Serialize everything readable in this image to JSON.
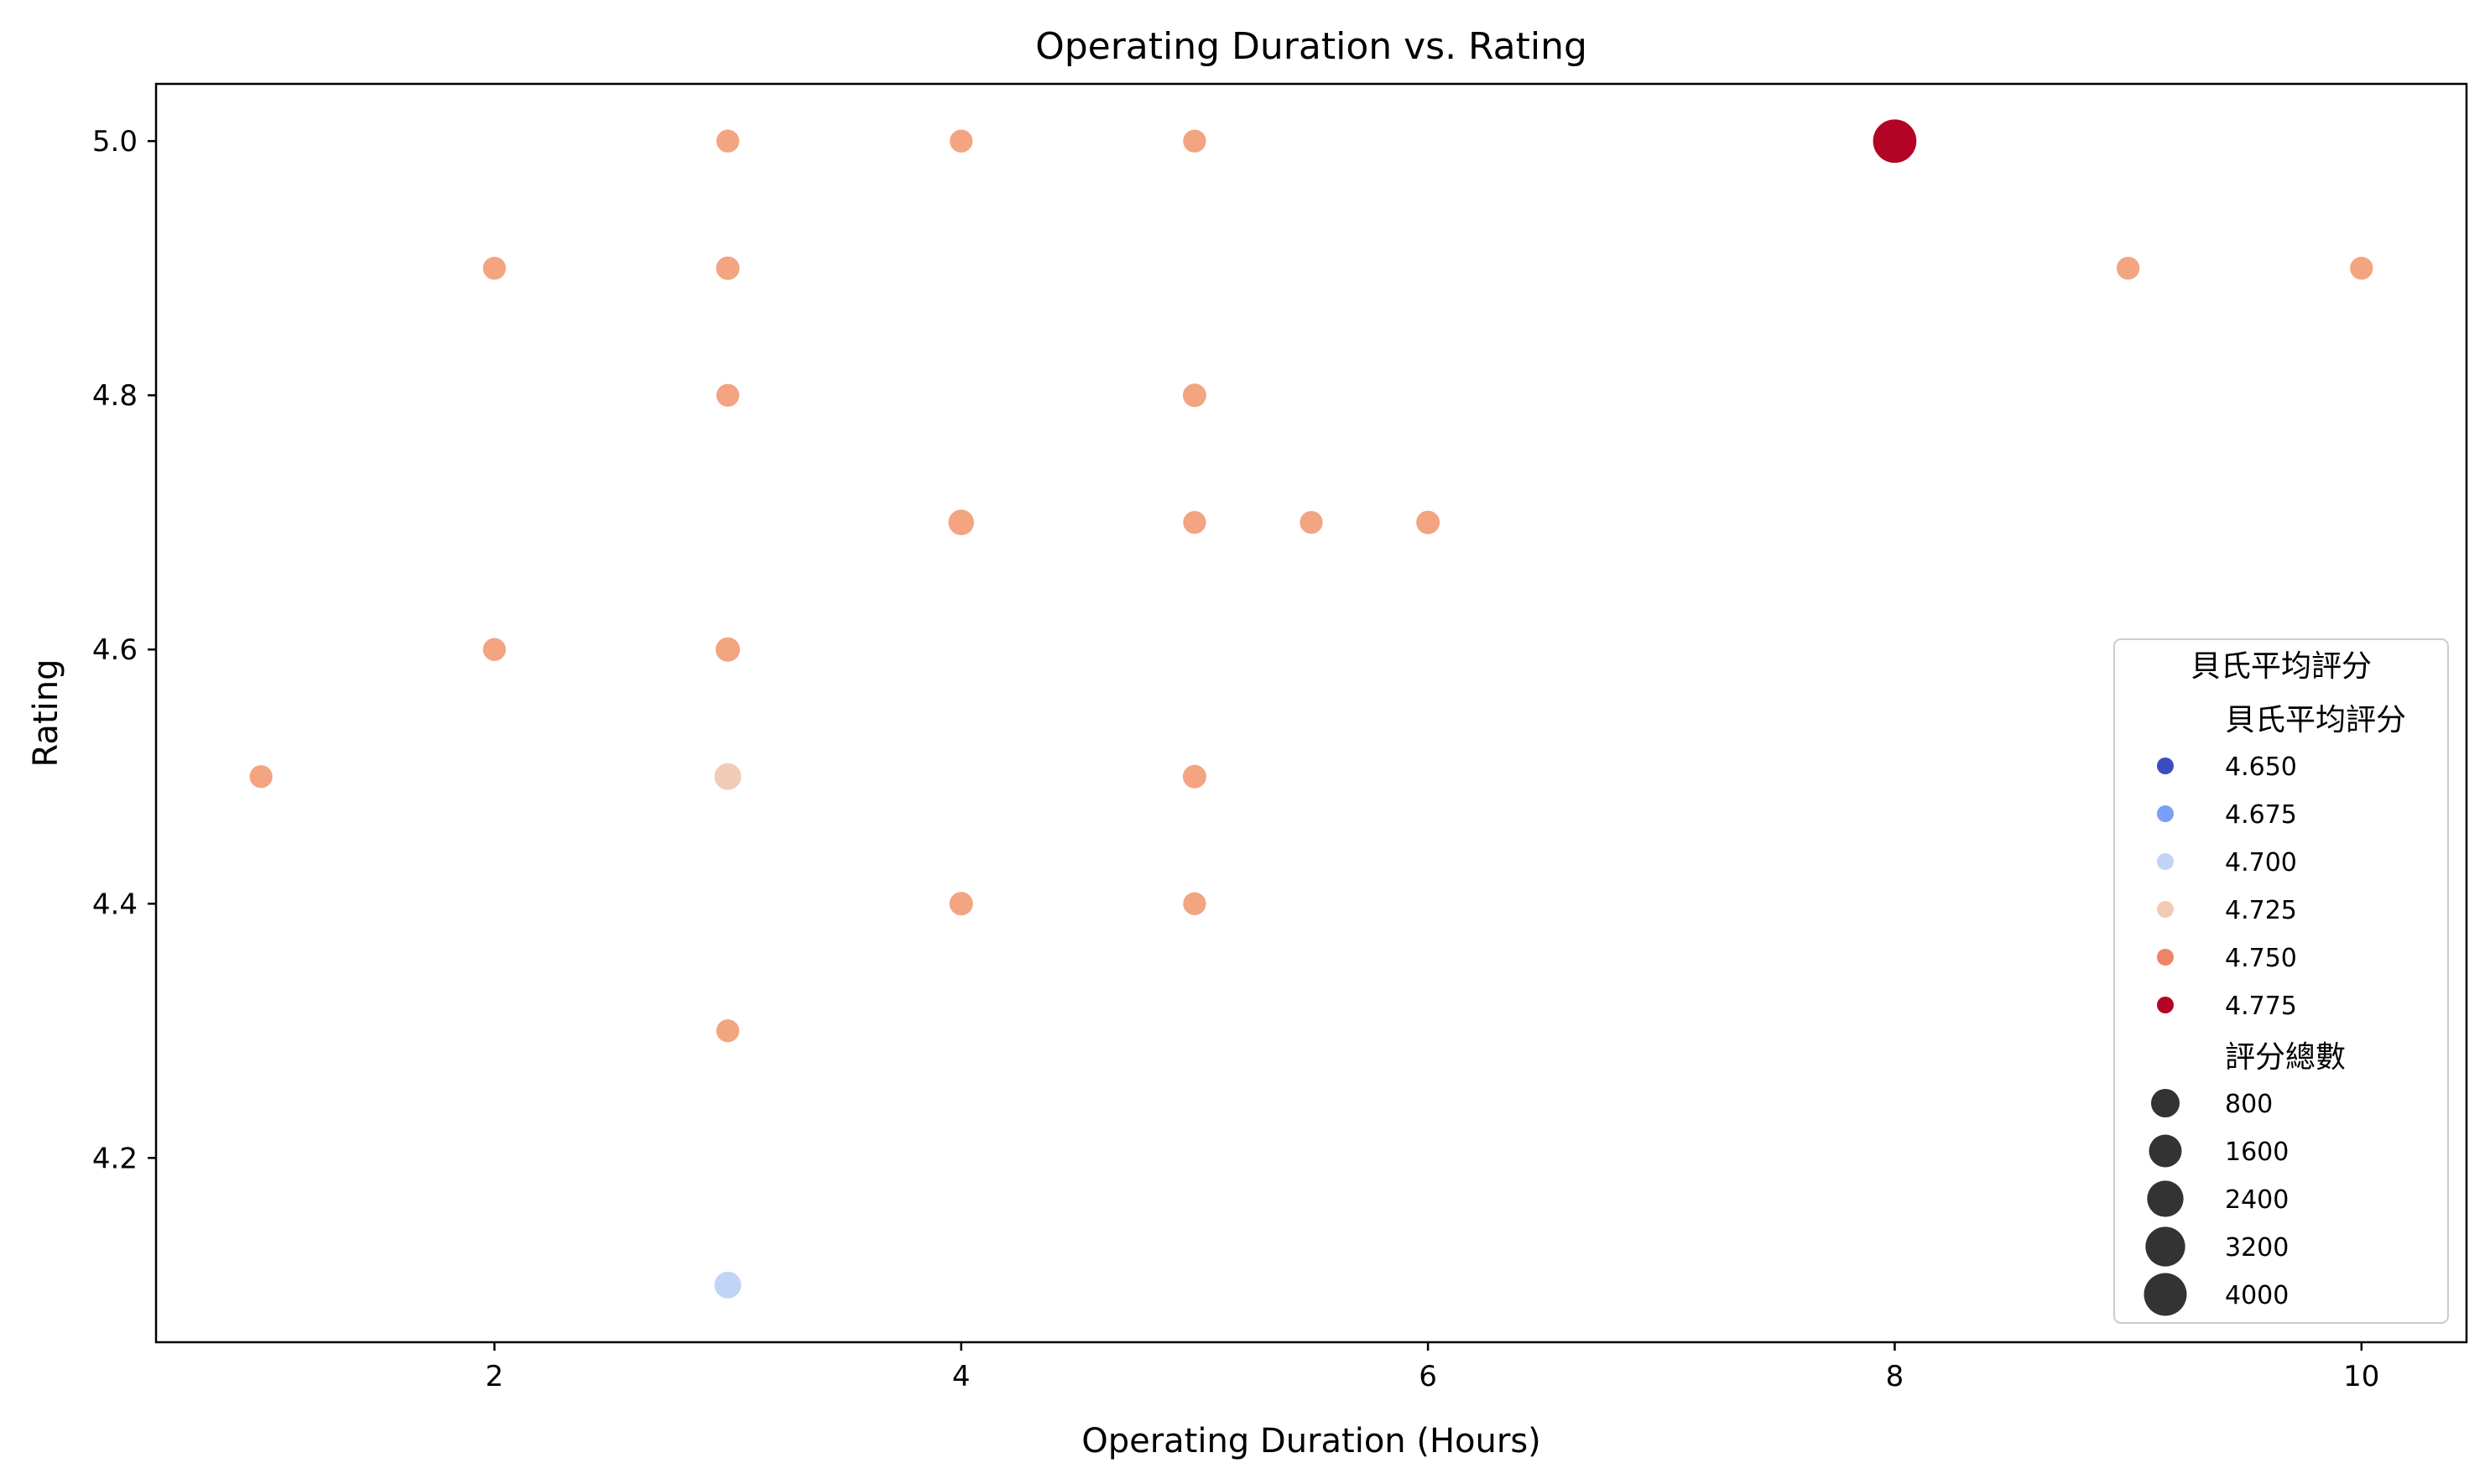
{
  "chart_data": {
    "type": "scatter",
    "title": "Operating Duration vs. Rating",
    "xlabel": "Operating Duration (Hours)",
    "ylabel": "Rating",
    "xlim": [
      0.55,
      10.45
    ],
    "ylim": [
      4.055,
      5.045
    ],
    "x_ticks": [
      "2",
      "4",
      "6",
      "8",
      "10"
    ],
    "y_ticks": [
      "4.2",
      "4.4",
      "4.6",
      "4.8",
      "5.0"
    ],
    "grid": false,
    "legend": {
      "placement": "lower-right",
      "title": "貝氏平均評分",
      "hue_title": "貝氏平均評分",
      "hue_entries": [
        {
          "label": "4.650",
          "color": "#3b4cc0"
        },
        {
          "label": "4.675",
          "color": "#7b9ff9"
        },
        {
          "label": "4.700",
          "color": "#c0d4f5"
        },
        {
          "label": "4.725",
          "color": "#f2cbb7"
        },
        {
          "label": "4.750",
          "color": "#ee8468"
        },
        {
          "label": "4.775",
          "color": "#b40426"
        }
      ],
      "size_title": "評分總數",
      "size_entries": [
        {
          "label": "800",
          "value": 800
        },
        {
          "label": "1600",
          "value": 1600
        },
        {
          "label": "2400",
          "value": 2400
        },
        {
          "label": "3200",
          "value": 3200
        },
        {
          "label": "4000",
          "value": 4000
        }
      ]
    },
    "points": [
      {
        "x": 3,
        "y": 5.0,
        "color": "#f3a481",
        "count": 60
      },
      {
        "x": 4,
        "y": 5.0,
        "color": "#f3a481",
        "count": 60
      },
      {
        "x": 5,
        "y": 5.0,
        "color": "#f3a481",
        "count": 60
      },
      {
        "x": 8,
        "y": 5.0,
        "color": "#b40426",
        "count": 4500
      },
      {
        "x": 2,
        "y": 4.9,
        "color": "#f3a481",
        "count": 60
      },
      {
        "x": 3,
        "y": 4.9,
        "color": "#f3a481",
        "count": 150
      },
      {
        "x": 9,
        "y": 4.9,
        "color": "#f3a481",
        "count": 60
      },
      {
        "x": 10,
        "y": 4.9,
        "color": "#f3a481",
        "count": 60
      },
      {
        "x": 3,
        "y": 4.8,
        "color": "#f3a481",
        "count": 60
      },
      {
        "x": 5,
        "y": 4.8,
        "color": "#f3a481",
        "count": 150
      },
      {
        "x": 4,
        "y": 4.7,
        "color": "#f3a481",
        "count": 500
      },
      {
        "x": 5,
        "y": 4.7,
        "color": "#f3a481",
        "count": 60
      },
      {
        "x": 5.5,
        "y": 4.7,
        "color": "#f3a481",
        "count": 60
      },
      {
        "x": 6,
        "y": 4.7,
        "color": "#f3a481",
        "count": 150
      },
      {
        "x": 2,
        "y": 4.6,
        "color": "#f3a481",
        "count": 60
      },
      {
        "x": 3,
        "y": 4.6,
        "color": "#f3a481",
        "count": 300
      },
      {
        "x": 1,
        "y": 4.5,
        "color": "#f3a481",
        "count": 60
      },
      {
        "x": 3,
        "y": 4.5,
        "color": "#f2cbb7",
        "count": 700
      },
      {
        "x": 5,
        "y": 4.5,
        "color": "#f3a481",
        "count": 150
      },
      {
        "x": 4,
        "y": 4.4,
        "color": "#f3a481",
        "count": 150
      },
      {
        "x": 5,
        "y": 4.4,
        "color": "#f3a481",
        "count": 60
      },
      {
        "x": 3,
        "y": 4.3,
        "color": "#f3a481",
        "count": 60
      },
      {
        "x": 3,
        "y": 4.1,
        "color": "#c0d4f5",
        "count": 700
      }
    ]
  }
}
